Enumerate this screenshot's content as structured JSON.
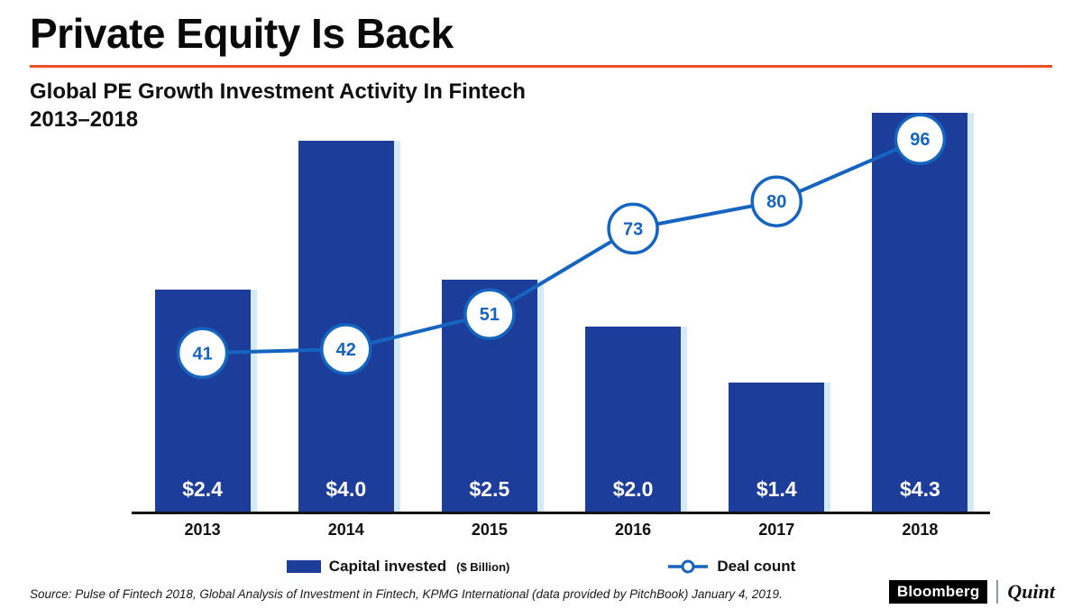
{
  "header": {
    "title": "Private Equity Is Back",
    "subtitle_line1": "Global PE Growth Investment Activity In Fintech",
    "subtitle_line2": "2013–2018",
    "accent_color": "#f04e23"
  },
  "chart_data": {
    "type": "bar",
    "categories": [
      "2013",
      "2014",
      "2015",
      "2016",
      "2017",
      "2018"
    ],
    "series": [
      {
        "name": "Capital invested",
        "type": "bar",
        "unit": "$ Billion",
        "values": [
          2.4,
          4.0,
          2.5,
          2.0,
          1.4,
          4.3
        ],
        "labels": [
          "$2.4",
          "$4.0",
          "$2.5",
          "$2.0",
          "$1.4",
          "$4.3"
        ]
      },
      {
        "name": "Deal count",
        "type": "line",
        "values": [
          41,
          42,
          51,
          73,
          80,
          96
        ]
      }
    ],
    "title": "Global PE Growth Investment Activity In Fintech 2013–2018",
    "xlabel": "",
    "ylabel": "",
    "value_axis_visible": false,
    "grid": false,
    "legend_position": "bottom",
    "colors": {
      "bar": "#1c3e9a",
      "bar_shadow": "#d2ebf7",
      "line": "#1565c0",
      "marker_fill": "#ffffff",
      "marker_text": "#1565c0",
      "bar_value_text": "#ffffff"
    }
  },
  "legend": {
    "capital_label": "Capital invested",
    "capital_unit": "($ Billion)",
    "deal_label": "Deal count"
  },
  "footer": {
    "source": "Source: Pulse of Fintech 2018, Global Analysis of Investment in Fintech, KPMG International (data provided by PitchBook) January 4, 2019.",
    "brand_bloomberg": "Bloomberg",
    "brand_quint": "Quint"
  }
}
